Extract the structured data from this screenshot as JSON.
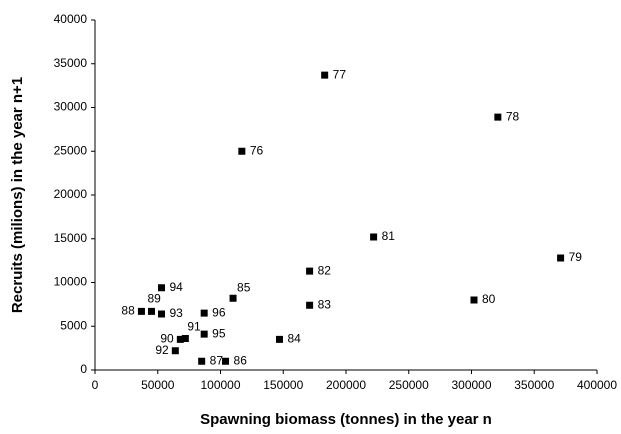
{
  "chart_data": {
    "type": "scatter",
    "xlabel": "Spawning biomass (tonnes) in the year n",
    "ylabel": "Recruits (milions) in the year n+1",
    "point_labels": [
      "76",
      "77",
      "78",
      "79",
      "80",
      "81",
      "82",
      "83",
      "84",
      "85",
      "86",
      "87",
      "88",
      "89",
      "90",
      "91",
      "92",
      "93",
      "94",
      "95",
      "96"
    ],
    "x": [
      117000,
      183000,
      321000,
      371000,
      302000,
      222000,
      171000,
      171000,
      147000,
      110000,
      104000,
      85000,
      37000,
      45000,
      68000,
      72000,
      64000,
      53000,
      53000,
      87000,
      87000
    ],
    "y": [
      25000,
      33700,
      28900,
      12800,
      8000,
      15200,
      11300,
      7400,
      3500,
      8200,
      1000,
      1000,
      6700,
      6700,
      3500,
      3600,
      2200,
      6400,
      9400,
      4100,
      6500
    ],
    "color": "#000000",
    "xlim": [
      0,
      400000
    ],
    "xticks": [
      0,
      50000,
      100000,
      150000,
      200000,
      250000,
      300000,
      350000,
      400000
    ],
    "ylim": [
      0,
      40000
    ],
    "yticks": [
      0,
      5000,
      10000,
      15000,
      20000,
      25000,
      30000,
      35000,
      40000
    ],
    "grid": false
  }
}
